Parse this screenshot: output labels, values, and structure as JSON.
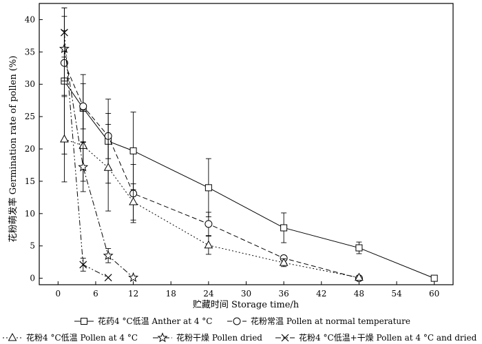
{
  "chart_data": {
    "type": "line",
    "xlabel": "贮藏时间 Storage time/h",
    "ylabel": "花粉萌发率 Germination rate of pollen (%)",
    "xlim": [
      -3,
      63
    ],
    "ylim": [
      -1,
      42.5
    ],
    "xticks": [
      0,
      6,
      12,
      18,
      24,
      30,
      36,
      42,
      48,
      54,
      60
    ],
    "yticks": [
      0,
      5,
      10,
      15,
      20,
      25,
      30,
      35,
      40
    ],
    "grid": false,
    "legend_position": "bottom",
    "series": [
      {
        "name": "花药4 °C低温  Anther at 4 °C",
        "marker": "square",
        "dash": "solid",
        "points": [
          {
            "x": 1,
            "y": 30.5,
            "err": 11.3
          },
          {
            "x": 4,
            "y": 26.3,
            "err": 5.2
          },
          {
            "x": 8,
            "y": 21.2,
            "err": 6.5
          },
          {
            "x": 12,
            "y": 19.7,
            "err": 6.0
          },
          {
            "x": 24,
            "y": 14.0,
            "err": 4.5
          },
          {
            "x": 36,
            "y": 7.8,
            "err": 2.3
          },
          {
            "x": 48,
            "y": 4.7,
            "err": 0.9
          },
          {
            "x": 60,
            "y": 0.0,
            "err": 0
          }
        ]
      },
      {
        "name": "花粉常温  Pollen at normal temperature",
        "marker": "circle",
        "dash": "dashed",
        "points": [
          {
            "x": 1,
            "y": 33.3,
            "err": 5.0
          },
          {
            "x": 4,
            "y": 26.6,
            "err": 3.5
          },
          {
            "x": 8,
            "y": 22.0,
            "err": 3.5
          },
          {
            "x": 12,
            "y": 13.1,
            "err": 4.5
          },
          {
            "x": 24,
            "y": 8.4,
            "err": 1.8
          },
          {
            "x": 36,
            "y": 3.1,
            "err": 0.4
          },
          {
            "x": 48,
            "y": 0.0,
            "err": 0
          }
        ]
      },
      {
        "name": "花粉4 °C低温  Pollen at 4 °C",
        "marker": "triangle",
        "dash": "dotted",
        "points": [
          {
            "x": 1,
            "y": 21.5,
            "err": 6.6
          },
          {
            "x": 4,
            "y": 20.5,
            "err": 5.5
          },
          {
            "x": 8,
            "y": 17.1,
            "err": 6.7
          },
          {
            "x": 12,
            "y": 11.8,
            "err": 2.8
          },
          {
            "x": 24,
            "y": 5.1,
            "err": 1.4
          },
          {
            "x": 36,
            "y": 2.4,
            "err": 0.6
          },
          {
            "x": 48,
            "y": 0.1,
            "err": 0
          }
        ]
      },
      {
        "name": "花粉干燥  Pollen dried",
        "marker": "star",
        "dash": "dashdot",
        "points": [
          {
            "x": 1,
            "y": 35.5,
            "err": 5.0
          },
          {
            "x": 4,
            "y": 17.2,
            "err": 3.8
          },
          {
            "x": 8,
            "y": 3.5,
            "err": 1.1
          },
          {
            "x": 12,
            "y": 0.1,
            "err": 0
          }
        ]
      },
      {
        "name": "花粉4 °C低温+干燥  Pollen at 4 °C and dried",
        "marker": "x",
        "dash": "dashdotdot",
        "points": [
          {
            "x": 1,
            "y": 38.0,
            "err": 3.8
          },
          {
            "x": 4,
            "y": 2.1,
            "err": 1.0
          },
          {
            "x": 8,
            "y": 0.1,
            "err": 0
          }
        ]
      }
    ]
  }
}
